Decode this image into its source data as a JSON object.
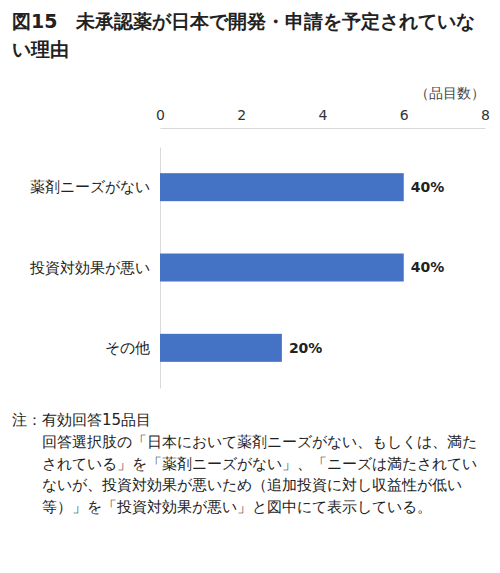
{
  "chart_data": {
    "type": "bar",
    "orientation": "horizontal",
    "title": "図15　未承認薬が日本で開発・申請を予定されていない理由",
    "x_label": "（品目数）",
    "categories": [
      "薬剤ニーズがない",
      "投資対効果が悪い",
      "その他"
    ],
    "values": [
      6,
      6,
      3
    ],
    "value_labels": [
      "40%",
      "40%",
      "20%"
    ],
    "data_labels": true,
    "color": "#4472c4",
    "xlim": [
      0,
      8
    ],
    "xticks": [
      0,
      2,
      4,
      6,
      8
    ],
    "grid": false
  },
  "notes": {
    "label": "注：",
    "lines": [
      "有効回答15品目",
      "回答選択肢の「日本において薬剤ニーズがない、もしくは、満たされている」を「薬剤ニーズがない」、「ニーズは満たされていないが、投資対効果が悪いため（追加投資に対し収益性が低い等）」を「投資対効果が悪い」と図中にて表示している。"
    ]
  }
}
